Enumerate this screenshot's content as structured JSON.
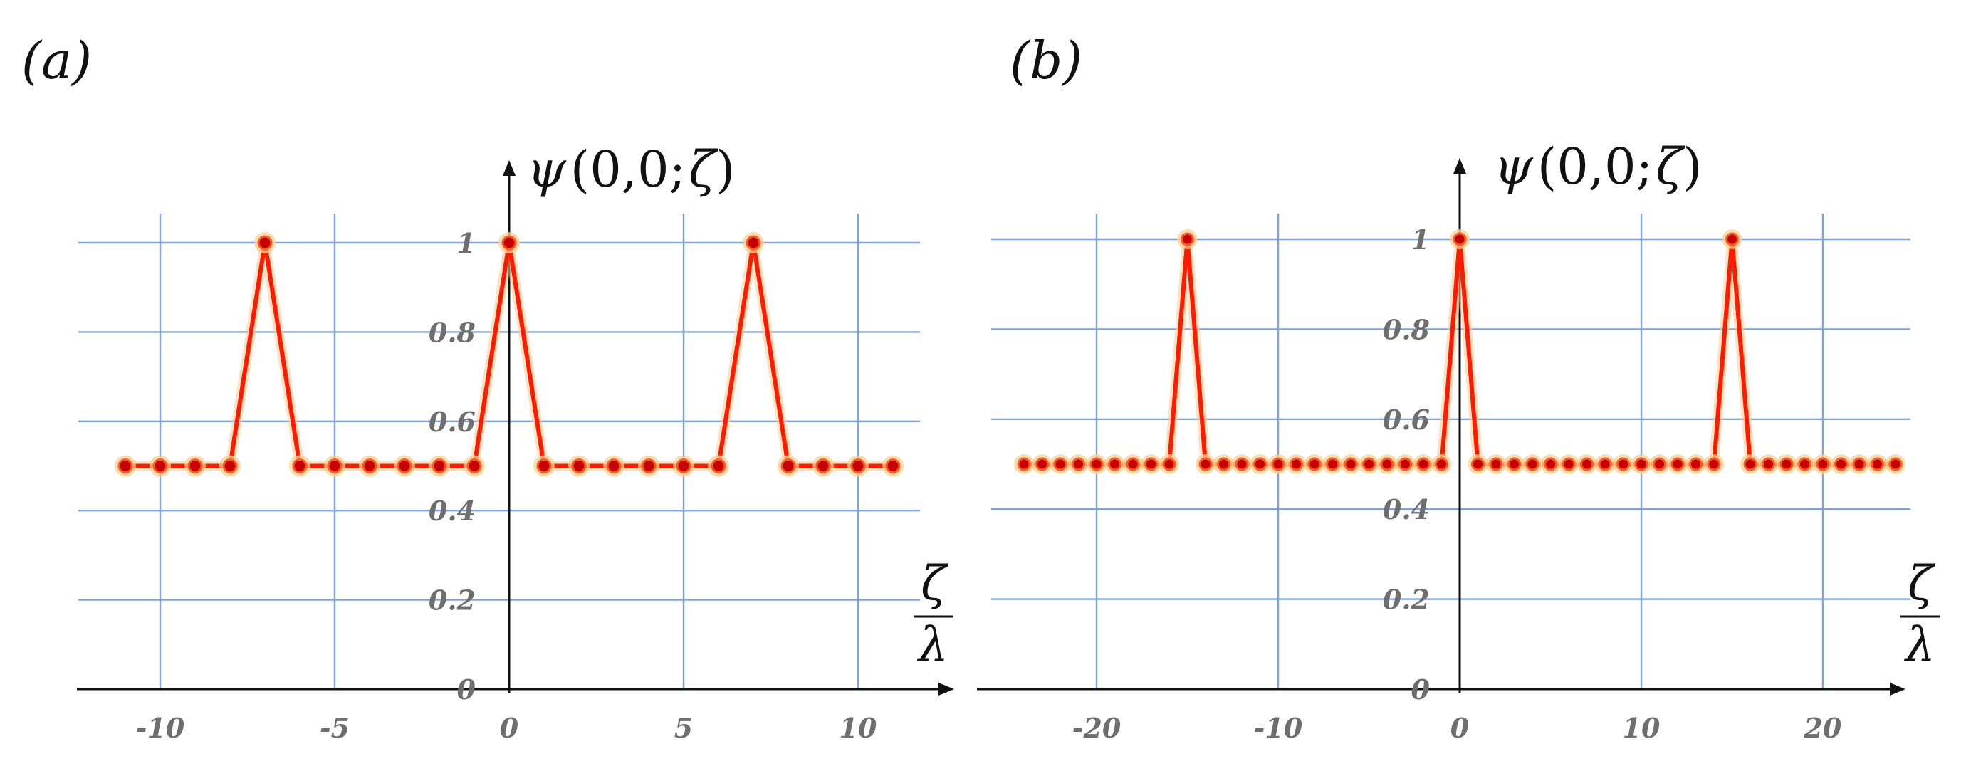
{
  "chart_data": [
    {
      "panel_label": "(a)",
      "type": "line",
      "ylabel_fn": "ψ",
      "ylabel_args": "(0,0;",
      "ylabel_var": "ζ",
      "ylabel_close": ")",
      "xlabel_num": "ζ",
      "xlabel_den": "λ",
      "xlim": [
        -12,
        12
      ],
      "ylim": [
        0,
        1.1
      ],
      "grid": true,
      "x_ticks": [
        -10,
        -5,
        0,
        5,
        10
      ],
      "x_tick_labels": [
        "-10",
        "-5",
        "0",
        "5",
        "10"
      ],
      "y_ticks": [
        0,
        0.2,
        0.4,
        0.6,
        0.8,
        1
      ],
      "y_tick_labels": [
        "0",
        "0.2",
        "0.4",
        "0.6",
        "0.8",
        "1"
      ],
      "color": "#ff1a00",
      "x": [
        -11,
        -10,
        -9,
        -8,
        -7,
        -6,
        -5,
        -4,
        -3,
        -2,
        -1,
        0,
        1,
        2,
        3,
        4,
        5,
        6,
        7,
        8,
        9,
        10,
        11
      ],
      "y": [
        0.5,
        0.5,
        0.5,
        0.5,
        1,
        0.5,
        0.5,
        0.5,
        0.5,
        0.5,
        0.5,
        1,
        0.5,
        0.5,
        0.5,
        0.5,
        0.5,
        0.5,
        1,
        0.5,
        0.5,
        0.5,
        0.5
      ]
    },
    {
      "panel_label": "(b)",
      "type": "line",
      "ylabel_fn": "ψ",
      "ylabel_args": "(0,0;",
      "ylabel_var": "ζ",
      "ylabel_close": ")",
      "xlabel_num": "ζ",
      "xlabel_den": "λ",
      "xlim": [
        -26,
        26
      ],
      "ylim": [
        0,
        1.1
      ],
      "grid": true,
      "x_ticks": [
        -20,
        -10,
        0,
        10,
        20
      ],
      "x_tick_labels": [
        "-20",
        "-10",
        "0",
        "10",
        "20"
      ],
      "y_ticks": [
        0,
        0.2,
        0.4,
        0.6,
        0.8,
        1
      ],
      "y_tick_labels": [
        "0",
        "0.2",
        "0.4",
        "0.6",
        "0.8",
        "1"
      ],
      "color": "#ff1a00",
      "x": [
        -24,
        -23,
        -22,
        -21,
        -20,
        -19,
        -18,
        -17,
        -16,
        -15,
        -14,
        -13,
        -12,
        -11,
        -10,
        -9,
        -8,
        -7,
        -6,
        -5,
        -4,
        -3,
        -2,
        -1,
        0,
        1,
        2,
        3,
        4,
        5,
        6,
        7,
        8,
        9,
        10,
        11,
        12,
        13,
        14,
        15,
        16,
        17,
        18,
        19,
        20,
        21,
        22,
        23,
        24
      ],
      "y": [
        0.5,
        0.5,
        0.5,
        0.5,
        0.5,
        0.5,
        0.5,
        0.5,
        0.5,
        1,
        0.5,
        0.5,
        0.5,
        0.5,
        0.5,
        0.5,
        0.5,
        0.5,
        0.5,
        0.5,
        0.5,
        0.5,
        0.5,
        0.5,
        1,
        0.5,
        0.5,
        0.5,
        0.5,
        0.5,
        0.5,
        0.5,
        0.5,
        0.5,
        0.5,
        0.5,
        0.5,
        0.5,
        0.5,
        1,
        0.5,
        0.5,
        0.5,
        0.5,
        0.5,
        0.5,
        0.5,
        0.5,
        0.5
      ]
    }
  ]
}
